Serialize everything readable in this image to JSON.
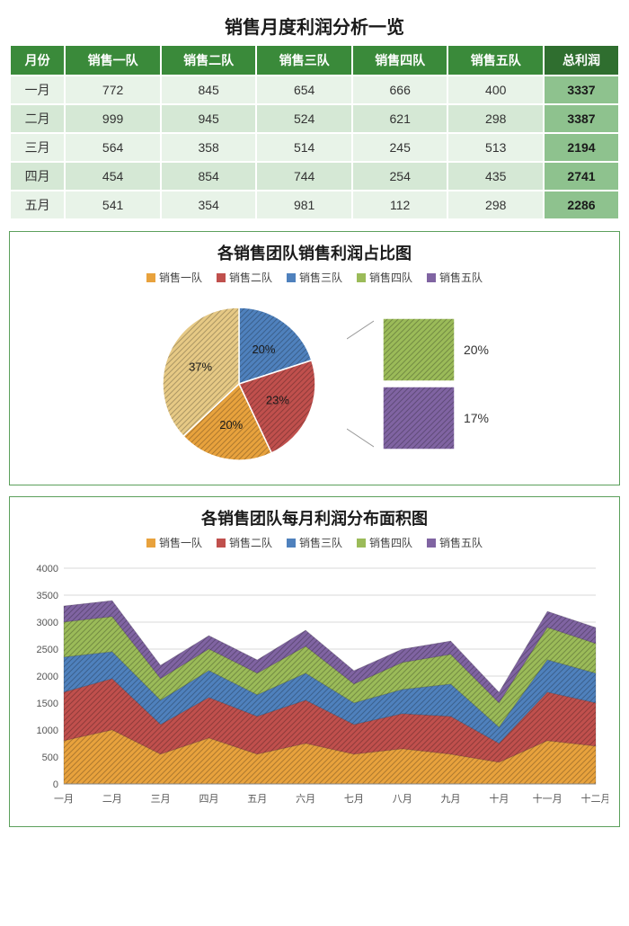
{
  "title": "销售月度利润分析一览",
  "table": {
    "columns": [
      "月份",
      "销售一队",
      "销售二队",
      "销售三队",
      "销售四队",
      "销售五队",
      "总利润"
    ],
    "rows": [
      [
        "一月",
        772,
        845,
        654,
        666,
        400,
        3337
      ],
      [
        "二月",
        999,
        945,
        524,
        621,
        298,
        3387
      ],
      [
        "三月",
        564,
        358,
        514,
        245,
        513,
        2194
      ],
      [
        "四月",
        454,
        854,
        744,
        254,
        435,
        2741
      ],
      [
        "五月",
        541,
        354,
        981,
        112,
        298,
        2286
      ]
    ],
    "header_bg": "#3a8a3a",
    "header_total_bg": "#2f6e2f",
    "row_light_bg": "#e8f3e8",
    "row_dark_bg": "#d5e8d5",
    "total_cell_bg": "#8ec28e"
  },
  "pie_chart": {
    "title": "各销售团队销售利润占比图",
    "series": [
      "销售一队",
      "销售二队",
      "销售三队",
      "销售四队",
      "销售五队"
    ],
    "colors": [
      "#e8a23d",
      "#c0504d",
      "#4f81bd",
      "#9bbb59",
      "#8064a2"
    ],
    "main_slices": [
      {
        "label": "20%",
        "pct": 20,
        "color": "#4f81bd"
      },
      {
        "label": "23%",
        "pct": 23,
        "color": "#c0504d"
      },
      {
        "label": "20%",
        "pct": 20,
        "color": "#e8a23d"
      },
      {
        "label": "37%",
        "pct": 37,
        "color": "#e6c985"
      }
    ],
    "side_slices": [
      {
        "label": "20%",
        "color": "#9bbb59"
      },
      {
        "label": "17%",
        "color": "#8064a2"
      }
    ],
    "bg": "#ffffff"
  },
  "area_chart": {
    "title": "各销售团队每月利润分布面积图",
    "series": [
      "销售一队",
      "销售二队",
      "销售三队",
      "销售四队",
      "销售五队"
    ],
    "colors": [
      "#e8a23d",
      "#c0504d",
      "#4f81bd",
      "#9bbb59",
      "#8064a2"
    ],
    "x_labels": [
      "一月",
      "二月",
      "三月",
      "四月",
      "五月",
      "六月",
      "七月",
      "八月",
      "九月",
      "十月",
      "十一月",
      "十二月"
    ],
    "ymax": 4000,
    "ytick_step": 500,
    "stacked_top": [
      [
        3300,
        3400,
        2200,
        2750,
        2300,
        2850,
        2100,
        2500,
        2650,
        1700,
        3200,
        2900
      ],
      [
        3000,
        3100,
        1950,
        2500,
        2050,
        2550,
        1850,
        2250,
        2400,
        1500,
        2900,
        2600
      ],
      [
        2350,
        2450,
        1550,
        2100,
        1650,
        2050,
        1500,
        1750,
        1850,
        1050,
        2300,
        2050
      ],
      [
        1700,
        1950,
        1100,
        1600,
        1250,
        1550,
        1100,
        1300,
        1250,
        750,
        1700,
        1500
      ],
      [
        800,
        1000,
        550,
        850,
        550,
        750,
        550,
        650,
        550,
        400,
        800,
        700
      ]
    ],
    "grid_color": "#d9d9d9",
    "bg": "#ffffff"
  }
}
